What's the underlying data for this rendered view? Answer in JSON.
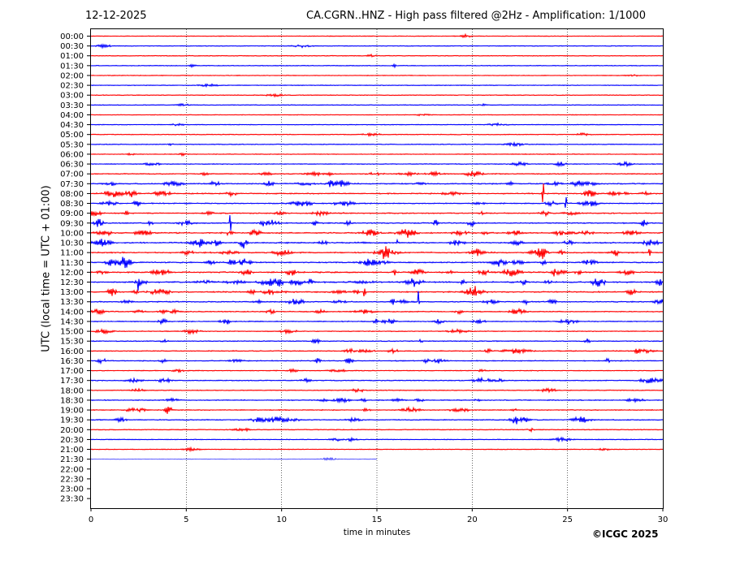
{
  "header": {
    "date": "12-12-2025",
    "title": "CA.CGRN..HNZ - High pass filtered @2Hz - Amplification: 1/1000"
  },
  "footer": {
    "copyright": "©ICGC 2025"
  },
  "colors": {
    "trace_a": "#ff0000",
    "trace_b": "#0000ff",
    "grid": "#000000"
  },
  "chart_data": {
    "type": "line",
    "title": "CA.CGRN..HNZ - High pass filtered @2Hz - Amplification: 1/1000",
    "xlabel": "time in minutes",
    "ylabel": "UTC (local time = UTC + 01:00)",
    "xlim": [
      0,
      30
    ],
    "x_ticks": [
      0,
      5,
      10,
      15,
      20,
      25,
      30
    ],
    "grid": "vertical dotted lines at 5-minute intervals",
    "row_labels": [
      "00:00",
      "00:30",
      "01:00",
      "01:30",
      "02:00",
      "02:30",
      "03:00",
      "03:30",
      "04:00",
      "04:30",
      "05:00",
      "05:30",
      "06:00",
      "06:30",
      "07:00",
      "07:30",
      "08:00",
      "08:30",
      "09:00",
      "09:30",
      "10:00",
      "10:30",
      "11:00",
      "11:30",
      "12:00",
      "12:30",
      "13:00",
      "13:30",
      "14:00",
      "14:30",
      "15:00",
      "15:30",
      "16:00",
      "16:30",
      "17:00",
      "17:30",
      "18:00",
      "18:30",
      "19:00",
      "19:30",
      "20:00",
      "20:30",
      "21:00",
      "21:30",
      "22:00",
      "22:30",
      "23:00",
      "23:30"
    ],
    "row_colors_cycle": [
      "red",
      "blue"
    ],
    "rows_with_data": 44,
    "last_trace_end_minute": 15,
    "activity": [
      0.1,
      0.12,
      0.1,
      0.12,
      0.1,
      0.1,
      0.1,
      0.12,
      0.1,
      0.12,
      0.12,
      0.15,
      0.15,
      0.25,
      0.4,
      0.7,
      0.6,
      0.55,
      0.6,
      0.65,
      0.85,
      0.8,
      0.8,
      0.75,
      0.85,
      0.95,
      0.8,
      0.55,
      0.5,
      0.4,
      0.25,
      0.3,
      0.5,
      0.45,
      0.25,
      0.35,
      0.2,
      0.4,
      0.35,
      0.45,
      0.2,
      0.2,
      0.15,
      0.1,
      0,
      0,
      0,
      0
    ]
  }
}
